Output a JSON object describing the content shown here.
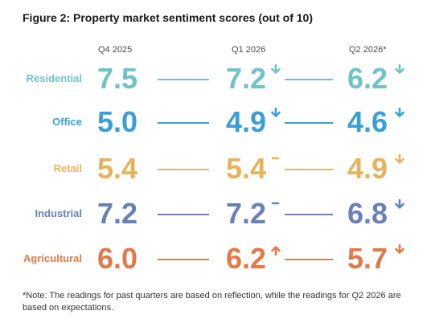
{
  "chart_data": {
    "type": "table",
    "title": "Figure 2: Property market sentiment scores (out of 10)",
    "columns": [
      "Q4 2025",
      "Q1 2026",
      "Q2 2026*"
    ],
    "rows": [
      {
        "label": "Residential",
        "values": [
          "7.5",
          "7.2",
          "6.2"
        ],
        "changes": [
          "",
          "down",
          "down"
        ],
        "color": "#6fc3c7"
      },
      {
        "label": "Office",
        "values": [
          "5.0",
          "4.9",
          "4.6"
        ],
        "changes": [
          "",
          "down",
          "down"
        ],
        "color": "#3a9fd4"
      },
      {
        "label": "Retail",
        "values": [
          "5.4",
          "5.4",
          "4.9"
        ],
        "changes": [
          "",
          "flat",
          "down"
        ],
        "color": "#e6b35c"
      },
      {
        "label": "Industrial",
        "values": [
          "7.2",
          "7.2",
          "6.8"
        ],
        "changes": [
          "",
          "flat",
          "down"
        ],
        "color": "#6a80b6"
      },
      {
        "label": "Agricultural",
        "values": [
          "6.0",
          "6.2",
          "5.7"
        ],
        "changes": [
          "",
          "up",
          "down"
        ],
        "color": "#e07a4a"
      }
    ],
    "note": "*Note: The readings for past quarters are based on reflection, while the readings for Q2 2026 are based on expectations."
  }
}
